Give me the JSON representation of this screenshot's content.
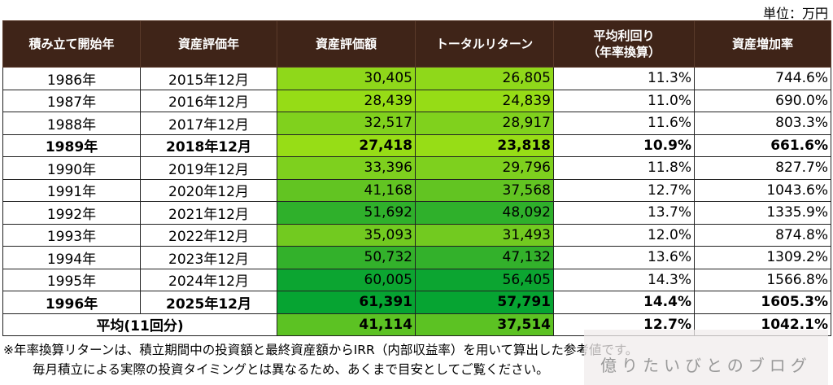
{
  "unit_label": "単位：万円",
  "headers": [
    "積み立て開始年",
    "資産評価年",
    "資産評価額",
    "トータルリターン",
    "平均利回り\n（年率換算）",
    "資産増加率"
  ],
  "rows": [
    {
      "start": "1986年",
      "eval": "2015年12月",
      "value": "30,405",
      "ret": "26,805",
      "yield": "11.3%",
      "growth": "744.6%",
      "bold": false,
      "color": "#8fd81a"
    },
    {
      "start": "1987年",
      "eval": "2016年12月",
      "value": "28,439",
      "ret": "24,839",
      "yield": "11.0%",
      "growth": "690.0%",
      "bold": false,
      "color": "#96dc16"
    },
    {
      "start": "1988年",
      "eval": "2017年12月",
      "value": "32,517",
      "ret": "28,917",
      "yield": "11.6%",
      "growth": "803.3%",
      "bold": false,
      "color": "#80d11d"
    },
    {
      "start": "1989年",
      "eval": "2018年12月",
      "value": "27,418",
      "ret": "23,818",
      "yield": "10.9%",
      "growth": "661.6%",
      "bold": true,
      "color": "#97dd16"
    },
    {
      "start": "1990年",
      "eval": "2019年12月",
      "value": "33,396",
      "ret": "29,796",
      "yield": "11.8%",
      "growth": "827.7%",
      "bold": false,
      "color": "#7ed01e"
    },
    {
      "start": "1991年",
      "eval": "2020年12月",
      "value": "41,168",
      "ret": "37,568",
      "yield": "12.7%",
      "growth": "1043.6%",
      "bold": false,
      "color": "#62c422"
    },
    {
      "start": "1992年",
      "eval": "2021年12月",
      "value": "51,692",
      "ret": "48,092",
      "yield": "13.7%",
      "growth": "1335.9%",
      "bold": false,
      "color": "#2fb02b"
    },
    {
      "start": "1993年",
      "eval": "2022年12月",
      "value": "35,093",
      "ret": "31,493",
      "yield": "12.0%",
      "growth": "874.8%",
      "bold": false,
      "color": "#72ca20"
    },
    {
      "start": "1994年",
      "eval": "2023年12月",
      "value": "50,732",
      "ret": "47,132",
      "yield": "13.6%",
      "growth": "1309.2%",
      "bold": false,
      "color": "#33b12b"
    },
    {
      "start": "1995年",
      "eval": "2024年12月",
      "value": "60,005",
      "ret": "56,405",
      "yield": "14.3%",
      "growth": "1566.8%",
      "bold": false,
      "color": "#0ca531"
    },
    {
      "start": "1996年",
      "eval": "2025年12月",
      "value": "61,391",
      "ret": "57,791",
      "yield": "14.4%",
      "growth": "1605.3%",
      "bold": true,
      "color": "#06a432"
    }
  ],
  "average": {
    "label": "平均(11回分)",
    "value": "41,114",
    "ret": "37,514",
    "yield": "12.7%",
    "growth": "1042.1%",
    "color": "#5cc223"
  },
  "notes": [
    "※年率換算リターンは、積立期間中の投資額と最終資産額からIRR（内部収益率）を用いて算出した参考値です。",
    "毎月積立による実際の投資タイミングとは異なるため、あくまで目安としてご覧ください。"
  ],
  "watermark": "億りたいびとのブログ",
  "header_color": "#3f2418"
}
